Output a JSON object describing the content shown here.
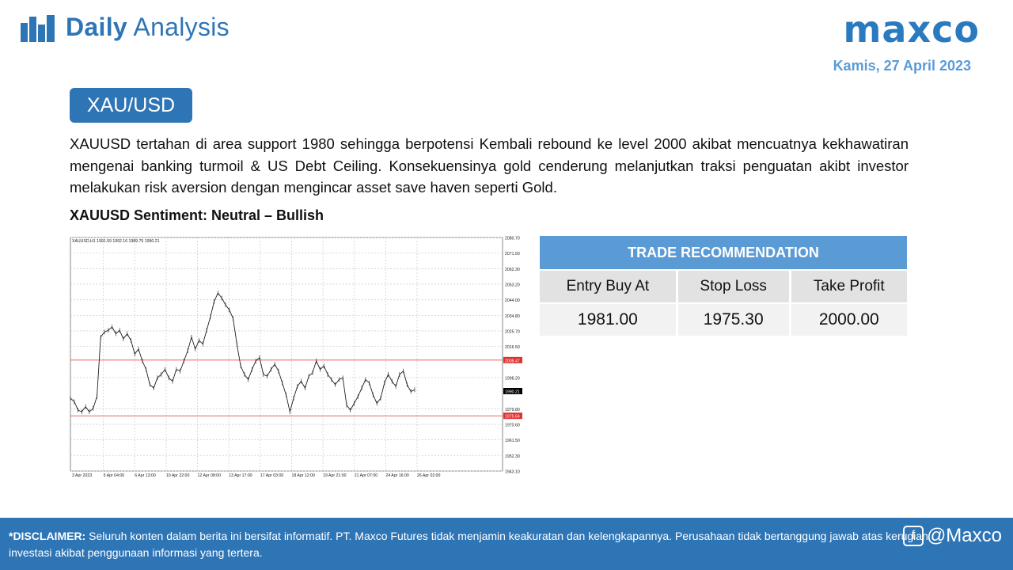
{
  "header": {
    "title_bold": "Daily",
    "title_rest": "Analysis",
    "brand": "maxco",
    "date": "Kamis, 27 April 2023"
  },
  "pair": "XAU/USD",
  "description": "XAUUSD tertahan di area support 1980 sehingga berpotensi Kembali rebound ke level 2000 akibat mencuatnya kekhawatiran mengenai banking turmoil & US Debt Ceiling. Konsekuensinya gold cenderung melanjutkan traksi penguatan akibt investor melakukan risk aversion dengan mengincar asset save haven seperti Gold.",
  "sentiment": "XAUUSD Sentiment: Neutral – Bullish",
  "chart_data": {
    "type": "line",
    "header_text": "XAUUSD,H1  1991.59 1992.16 1989.75 1990.21",
    "y_ticks": [
      "2080.70",
      "2071.50",
      "2062.30",
      "2053.20",
      "2044.00",
      "2034.80",
      "2025.70",
      "2016.50",
      "2008.47",
      "1998.20",
      "1990.21",
      "1979.80",
      "1975.64",
      "1970.60",
      "1961.50",
      "1952.30",
      "1943.10"
    ],
    "x_ticks": [
      "3 Apr 2023",
      "5 Apr 04:00",
      "6 Apr 13:00",
      "10 Apr 22:00",
      "12 Apr 08:00",
      "13 Apr 17:00",
      "17 Apr 03:00",
      "18 Apr 12:00",
      "19 Apr 21:00",
      "21 Apr 07:00",
      "24 Apr 16:00",
      "26 Apr 02:00"
    ],
    "ylim": [
      1943.1,
      2080.7
    ],
    "horizontal_lines": [
      {
        "value": 2008.47,
        "color": "#e03030"
      },
      {
        "value": 1975.64,
        "color": "#e03030"
      }
    ],
    "current_price": 1990.21,
    "series": [
      {
        "values": [
          1986,
          1984,
          1979,
          1978,
          1981,
          1978,
          1980,
          1987,
          2022,
          2025,
          2026,
          2028,
          2024,
          2026,
          2021,
          2024,
          2020,
          2012,
          2015,
          2008,
          2003,
          1994,
          1992,
          1998,
          2000,
          2003,
          1998,
          1996,
          2003,
          2002,
          2008,
          2014,
          2022,
          2015,
          2020,
          2018,
          2026,
          2034,
          2043,
          2048,
          2045,
          2041,
          2038,
          2033,
          2018,
          2005,
          2000,
          1997,
          2003,
          2008,
          2010,
          2000,
          1999,
          2003,
          2006,
          2002,
          1995,
          1988,
          1978,
          1986,
          1993,
          1996,
          1992,
          1999,
          2001,
          2008,
          2003,
          2005,
          2000,
          1997,
          1994,
          1997,
          1998,
          1982,
          1979,
          1983,
          1987,
          1992,
          1997,
          1995,
          1988,
          1983,
          1986,
          1995,
          2000,
          1996,
          1993,
          2000,
          2002,
          1994,
          1990,
          1991
        ]
      }
    ]
  },
  "trade": {
    "heading": "TRADE RECOMMENDATION",
    "labels": [
      "Entry Buy At",
      "Stop Loss",
      "Take Profit"
    ],
    "values": [
      "1981.00",
      "1975.30",
      "2000.00"
    ]
  },
  "footer": {
    "disclaimer_label": "*DISCLAIMER:",
    "disclaimer_text": " Seluruh konten dalam berita ini bersifat informatif. PT. Maxco Futures tidak menjamin keakuratan dan kelengkapannya. Perusahaan tidak bertanggung jawab atas kerugian investasi akibat penggunaan informasi yang tertera.",
    "social": "@Maxco",
    "social_icon": "facebook-icon"
  }
}
